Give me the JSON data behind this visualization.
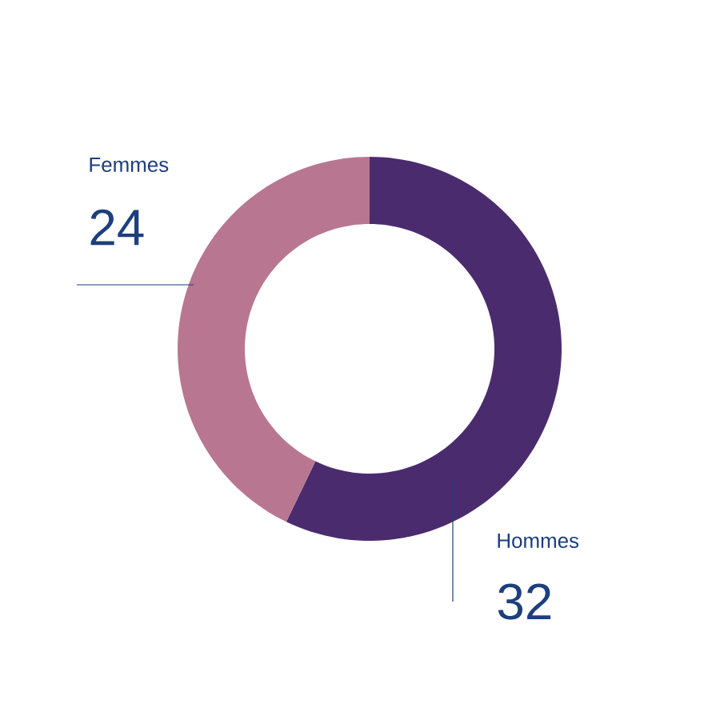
{
  "chart_data": {
    "type": "donut",
    "categories": [
      "Hommes",
      "Femmes"
    ],
    "values": [
      32,
      24
    ],
    "colors": [
      "#4a2c6e",
      "#b87690"
    ],
    "data_labels": true
  }
}
